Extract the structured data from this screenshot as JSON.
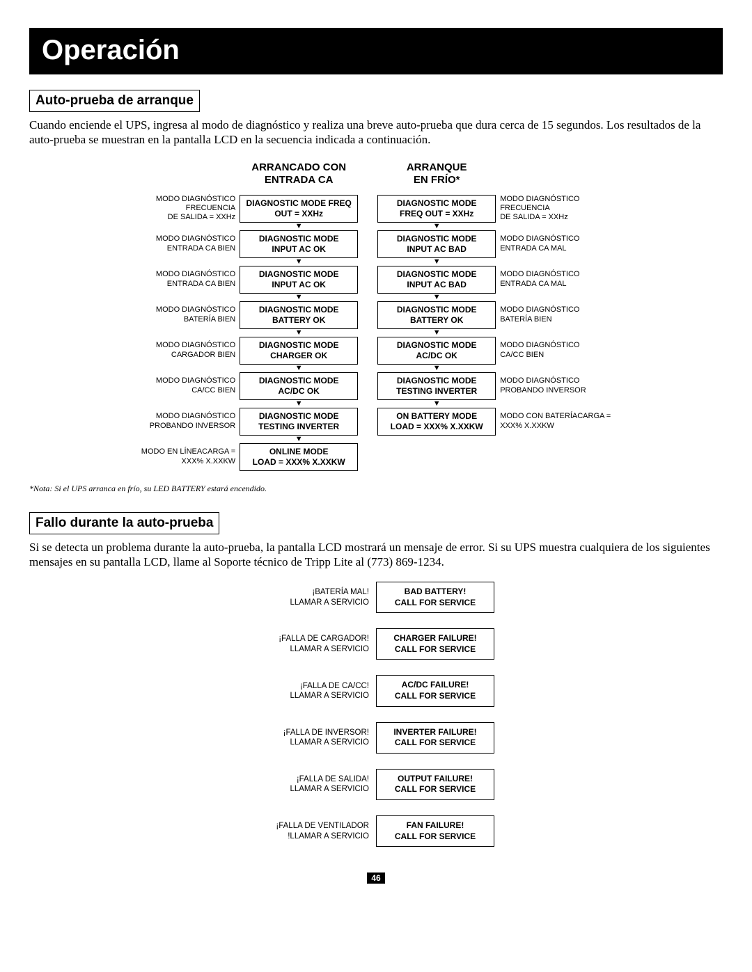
{
  "title": "Operación",
  "section1": {
    "heading": "Auto-prueba de arranque",
    "body": "Cuando enciende el UPS, ingresa al modo de diagnóstico y realiza una breve auto-prueba que dura cerca de 15 segundos. Los resultados de la auto-prueba se muestran en la pantalla LCD en la secuencia indicada a continuación."
  },
  "flow": {
    "left": {
      "heading_l1": "ARRANCADO CON",
      "heading_l2": "ENTRADA CA",
      "steps": [
        {
          "lbl_l1": "MODO DIAGNÓSTICO",
          "lbl_l2": "FRECUENCIA",
          "lbl_l3": "DE SALIDA = XXHz",
          "box_l1": "DIAGNOSTIC MODE FREQ",
          "box_l2": "OUT = XXHz"
        },
        {
          "lbl_l1": "MODO DIAGNÓSTICO",
          "lbl_l2": "ENTRADA CA BIEN",
          "box_l1": "DIAGNOSTIC MODE",
          "box_l2": "INPUT AC OK"
        },
        {
          "lbl_l1": "MODO DIAGNÓSTICO",
          "lbl_l2": "ENTRADA CA BIEN",
          "box_l1": "DIAGNOSTIC MODE",
          "box_l2": "INPUT AC OK"
        },
        {
          "lbl_l1": "MODO DIAGNÓSTICO",
          "lbl_l2": "BATERÍA BIEN",
          "box_l1": "DIAGNOSTIC MODE",
          "box_l2": "BATTERY OK"
        },
        {
          "lbl_l1": "MODO DIAGNÓSTICO",
          "lbl_l2": "CARGADOR BIEN",
          "box_l1": "DIAGNOSTIC MODE",
          "box_l2": "CHARGER OK"
        },
        {
          "lbl_l1": "MODO DIAGNÓSTICO",
          "lbl_l2": "CA/CC BIEN",
          "box_l1": "DIAGNOSTIC MODE",
          "box_l2": "AC/DC OK"
        },
        {
          "lbl_l1": "MODO DIAGNÓSTICO",
          "lbl_l2": "PROBANDO INVERSOR",
          "box_l1": "DIAGNOSTIC MODE",
          "box_l2": "TESTING INVERTER"
        },
        {
          "lbl_l1": "MODO EN LÍNEACARGA =",
          "lbl_l2": "XXX% X.XXKW",
          "box_l1": "ONLINE MODE",
          "box_l2": "LOAD = XXX% X.XXKW"
        }
      ]
    },
    "right": {
      "heading_l1": "ARRANQUE",
      "heading_l2": "EN FRÍO*",
      "steps": [
        {
          "box_l1": "DIAGNOSTIC MODE",
          "box_l2": "FREQ OUT = XXHz",
          "rlbl_l1": "MODO DIAGNÓSTICO",
          "rlbl_l2": "FRECUENCIA",
          "rlbl_l3": "DE SALIDA = XXHz"
        },
        {
          "box_l1": "DIAGNOSTIC MODE",
          "box_l2": "INPUT AC BAD",
          "rlbl_l1": "MODO DIAGNÓSTICO",
          "rlbl_l2": "ENTRADA CA MAL"
        },
        {
          "box_l1": "DIAGNOSTIC MODE",
          "box_l2": "INPUT AC BAD",
          "rlbl_l1": "MODO DIAGNÓSTICO",
          "rlbl_l2": "ENTRADA CA MAL"
        },
        {
          "box_l1": "DIAGNOSTIC MODE",
          "box_l2": "BATTERY OK",
          "rlbl_l1": "MODO DIAGNÓSTICO",
          "rlbl_l2": "BATERÍA BIEN"
        },
        {
          "box_l1": "DIAGNOSTIC MODE",
          "box_l2": "AC/DC OK",
          "rlbl_l1": "MODO DIAGNÓSTICO",
          "rlbl_l2": "CA/CC BIEN"
        },
        {
          "box_l1": "DIAGNOSTIC MODE",
          "box_l2": "TESTING INVERTER",
          "rlbl_l1": "MODO DIAGNÓSTICO",
          "rlbl_l2": "PROBANDO INVERSOR"
        },
        {
          "box_l1": "ON BATTERY MODE",
          "box_l2": "LOAD = XXX% X.XXKW",
          "rlbl_l1": "MODO CON BATERÍACARGA =",
          "rlbl_l2": "XXX% X.XXKW"
        }
      ]
    }
  },
  "footnote": "*Nota: Si el UPS arranca en frío, su LED BATTERY estará encendido.",
  "section2": {
    "heading": "Fallo durante la auto-prueba",
    "body": "Si se detecta un problema durante la auto-prueba, la pantalla LCD mostrará un mensaje de error. Si su UPS muestra cualquiera de los siguientes mensajes en su pantalla LCD, llame al Soporte técnico de Tripp Lite al (773) 869-1234."
  },
  "failures": [
    {
      "lbl_l1": "¡BATERÍA MAL!",
      "lbl_l2": "LLAMAR A SERVICIO",
      "box_l1": "BAD BATTERY!",
      "box_l2": "CALL FOR SERVICE"
    },
    {
      "lbl_l1": "¡FALLA DE CARGADOR!",
      "lbl_l2": "LLAMAR A SERVICIO",
      "box_l1": "CHARGER FAILURE!",
      "box_l2": "CALL FOR SERVICE"
    },
    {
      "lbl_l1": "¡FALLA DE CA/CC!",
      "lbl_l2": "LLAMAR A SERVICIO",
      "box_l1": "AC/DC FAILURE!",
      "box_l2": "CALL FOR SERVICE"
    },
    {
      "lbl_l1": "¡FALLA DE INVERSOR!",
      "lbl_l2": "LLAMAR A SERVICIO",
      "box_l1": "INVERTER FAILURE!",
      "box_l2": "CALL FOR SERVICE"
    },
    {
      "lbl_l1": "¡FALLA DE SALIDA!",
      "lbl_l2": "LLAMAR A SERVICIO",
      "box_l1": "OUTPUT FAILURE!",
      "box_l2": "CALL FOR SERVICE"
    },
    {
      "lbl_l1": "¡FALLA DE VENTILADOR",
      "lbl_l2": "!LLAMAR A SERVICIO",
      "box_l1": "FAN FAILURE!",
      "box_l2": "CALL FOR SERVICE"
    }
  ],
  "page": "46"
}
